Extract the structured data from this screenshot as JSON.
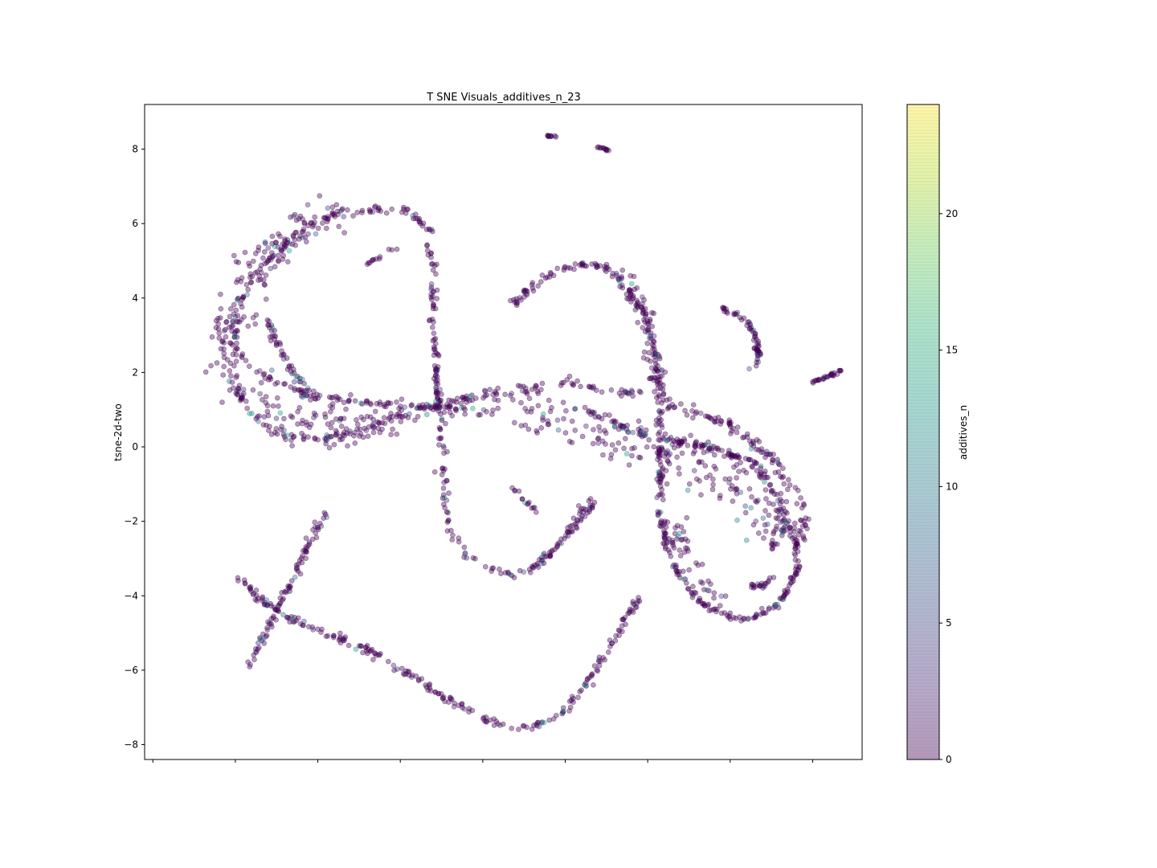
{
  "chart_data": {
    "type": "scatter",
    "title": "T SNE Visuals_additives_n_23",
    "xlabel": "",
    "ylabel": "tsne-2d-two",
    "xlim": [
      -9.2,
      8.2
    ],
    "ylim": [
      -8.4,
      9.2
    ],
    "xticks": [
      -9,
      -7,
      -5,
      -3,
      -1,
      1,
      3,
      5,
      7
    ],
    "yticks": [
      -8,
      -6,
      -4,
      -2,
      0,
      2,
      4,
      6,
      8
    ],
    "ytick_labels": [
      "−8",
      "−6",
      "−4",
      "−2",
      "0",
      "2",
      "4",
      "6",
      "8"
    ],
    "grid": false,
    "marker_alpha": 0.4,
    "colorbar": {
      "label": "additives_n",
      "range": [
        0,
        24
      ],
      "ticks": [
        0,
        5,
        10,
        15,
        20
      ],
      "tick_labels": [
        "0",
        "5",
        "10",
        "15",
        "20"
      ],
      "colormap": "viridis"
    },
    "colormap_stops": [
      "#440154",
      "#482878",
      "#3e4989",
      "#31688e",
      "#26828e",
      "#1f9e89",
      "#35b779",
      "#6ece58",
      "#b5de2b",
      "#fde725"
    ],
    "point_color_main": "#440154",
    "segments": [
      {
        "points": [
          [
            -5.0,
            1.3
          ],
          [
            -6.2,
            1.8
          ],
          [
            -7.0,
            2.6
          ],
          [
            -7.0,
            3.6
          ],
          [
            -6.5,
            4.6
          ],
          [
            -5.7,
            5.6
          ],
          [
            -4.7,
            6.2
          ],
          [
            -3.6,
            6.4
          ],
          [
            -2.7,
            6.3
          ],
          [
            -2.3,
            5.8
          ],
          [
            -2.2,
            4.8
          ],
          [
            -2.2,
            3.5
          ],
          [
            -2.1,
            1.8
          ],
          [
            -2.0,
            0.5
          ],
          [
            -1.95,
            -1.0
          ],
          [
            -1.8,
            -2.3
          ],
          [
            -1.4,
            -2.9
          ],
          [
            -0.8,
            -3.3
          ],
          [
            -0.3,
            -3.4
          ],
          [
            0.2,
            -3.3
          ],
          [
            0.6,
            -2.9
          ],
          [
            1.0,
            -2.4
          ],
          [
            1.3,
            -1.9
          ],
          [
            1.6,
            -1.4
          ]
        ],
        "n": 320,
        "jitter": 0.05
      },
      {
        "points": [
          [
            -5.0,
            1.3
          ],
          [
            -4.3,
            1.25
          ],
          [
            -3.4,
            1.15
          ],
          [
            -2.5,
            1.05
          ],
          [
            -1.4,
            0.98
          ],
          [
            -0.6,
            0.95
          ]
        ],
        "n": 70,
        "jitter": 0.06
      },
      {
        "points": [
          [
            -6.2,
            3.4
          ],
          [
            -6.0,
            2.8
          ],
          [
            -5.6,
            2.0
          ],
          [
            -5.0,
            1.3
          ]
        ],
        "n": 50,
        "jitter": 0.05
      },
      {
        "points": [
          [
            -7.2,
            2.0
          ],
          [
            -7.2,
            3.0
          ],
          [
            -6.9,
            4.0
          ],
          [
            -6.3,
            5.1
          ],
          [
            -5.4,
            5.9
          ],
          [
            -4.4,
            6.3
          ]
        ],
        "n": 160,
        "jitter": 0.25
      },
      {
        "points": [
          [
            -7.1,
            2.0
          ],
          [
            -6.7,
            1.0
          ],
          [
            -6.0,
            0.4
          ],
          [
            -5.0,
            0.2
          ],
          [
            -4.0,
            0.4
          ],
          [
            -3.0,
            0.8
          ],
          [
            -2.1,
            1.1
          ],
          [
            -1.0,
            1.4
          ],
          [
            0.0,
            1.55
          ],
          [
            1.0,
            1.7
          ],
          [
            2.0,
            1.55
          ],
          [
            3.0,
            1.4
          ],
          [
            4.0,
            1.0
          ],
          [
            5.0,
            0.6
          ],
          [
            6.0,
            -0.3
          ],
          [
            6.6,
            -1.2
          ],
          [
            6.8,
            -2.0
          ],
          [
            6.7,
            -2.6
          ]
        ],
        "n": 300,
        "jitter": 0.07
      },
      {
        "points": [
          [
            -6.8,
            1.5
          ],
          [
            -6.0,
            0.8
          ],
          [
            -5.0,
            0.6
          ],
          [
            -4.0,
            0.6
          ],
          [
            -3.0,
            0.8
          ]
        ],
        "n": 90,
        "jitter": 0.3
      },
      {
        "points": [
          [
            -0.2,
            1.0
          ],
          [
            0.5,
            0.8
          ],
          [
            1.5,
            0.5
          ],
          [
            2.5,
            0.1
          ],
          [
            3.5,
            -0.2
          ],
          [
            4.5,
            -0.6
          ],
          [
            5.5,
            -1.2
          ],
          [
            6.0,
            -1.8
          ],
          [
            6.3,
            -2.3
          ]
        ],
        "n": 200,
        "jitter": 0.35
      },
      {
        "points": [
          [
            1.5,
            1.0
          ],
          [
            2.5,
            0.5
          ],
          [
            3.5,
            0.2
          ],
          [
            4.5,
            0.0
          ],
          [
            5.5,
            -0.4
          ],
          [
            6.2,
            -1.4
          ],
          [
            6.3,
            -2.3
          ],
          [
            6.0,
            -2.7
          ]
        ],
        "n": 150,
        "jitter": 0.05
      },
      {
        "points": [
          [
            -0.3,
            3.8
          ],
          [
            0.3,
            4.4
          ],
          [
            1.1,
            4.9
          ],
          [
            1.8,
            4.9
          ],
          [
            2.4,
            4.5
          ],
          [
            2.9,
            3.6
          ],
          [
            3.2,
            2.5
          ],
          [
            3.3,
            1.2
          ],
          [
            3.3,
            -0.5
          ],
          [
            3.3,
            -1.9
          ],
          [
            3.6,
            -3.1
          ],
          [
            4.2,
            -4.1
          ],
          [
            5.0,
            -4.6
          ],
          [
            5.6,
            -4.6
          ],
          [
            6.2,
            -4.2
          ],
          [
            6.6,
            -3.4
          ],
          [
            6.6,
            -2.6
          ],
          [
            6.4,
            -2.0
          ]
        ],
        "n": 360,
        "jitter": 0.05
      },
      {
        "points": [
          [
            2.3,
            4.6
          ],
          [
            2.8,
            3.8
          ],
          [
            3.1,
            2.8
          ],
          [
            3.2,
            1.5
          ]
        ],
        "n": 60,
        "jitter": 0.12
      },
      {
        "points": [
          [
            3.6,
            -1.7
          ],
          [
            3.8,
            -2.6
          ],
          [
            4.2,
            -3.4
          ],
          [
            4.8,
            -4.1
          ]
        ],
        "n": 40,
        "jitter": 0.12
      },
      {
        "points": [
          [
            -4.8,
            -1.7
          ],
          [
            -5.2,
            -2.5
          ],
          [
            -5.6,
            -3.6
          ],
          [
            -6.0,
            -4.4
          ],
          [
            -6.4,
            -5.3
          ],
          [
            -6.7,
            -6.0
          ]
        ],
        "n": 90,
        "jitter": 0.04
      },
      {
        "points": [
          [
            -6.9,
            -3.6
          ],
          [
            -6.3,
            -4.2
          ],
          [
            -5.5,
            -4.7
          ],
          [
            -4.6,
            -5.1
          ],
          [
            -3.7,
            -5.5
          ],
          [
            -2.8,
            -6.1
          ],
          [
            -2.0,
            -6.7
          ],
          [
            -1.2,
            -7.2
          ],
          [
            -0.4,
            -7.5
          ],
          [
            0.3,
            -7.5
          ],
          [
            0.9,
            -7.2
          ],
          [
            1.5,
            -6.4
          ],
          [
            2.0,
            -5.5
          ],
          [
            2.5,
            -4.6
          ],
          [
            2.8,
            -4.0
          ]
        ],
        "n": 240,
        "jitter": 0.05
      },
      {
        "points": [
          [
            1.8,
            -1.4
          ],
          [
            1.3,
            -2.0
          ],
          [
            0.8,
            -2.7
          ],
          [
            0.4,
            -3.1
          ]
        ],
        "n": 40,
        "jitter": 0.04
      },
      {
        "points": [
          [
            4.8,
            3.7
          ],
          [
            5.3,
            3.5
          ],
          [
            5.6,
            3.0
          ],
          [
            5.7,
            2.5
          ],
          [
            5.6,
            2.1
          ]
        ],
        "n": 60,
        "jitter": 0.04
      },
      {
        "points": [
          [
            7.0,
            1.75
          ],
          [
            7.3,
            1.85
          ],
          [
            7.7,
            2.05
          ]
        ],
        "n": 30,
        "jitter": 0.02
      },
      {
        "points": [
          [
            0.55,
            8.35
          ],
          [
            0.75,
            8.35
          ]
        ],
        "n": 10,
        "jitter": 0.02
      },
      {
        "points": [
          [
            1.8,
            8.05
          ],
          [
            2.1,
            7.95
          ]
        ],
        "n": 12,
        "jitter": 0.02
      },
      {
        "points": [
          [
            -0.3,
            -1.05
          ],
          [
            0.0,
            -1.4
          ],
          [
            0.3,
            -1.75
          ]
        ],
        "n": 14,
        "jitter": 0.04
      },
      {
        "points": [
          [
            5.3,
            -3.8
          ],
          [
            5.8,
            -3.7
          ],
          [
            6.2,
            -3.4
          ]
        ],
        "n": 20,
        "jitter": 0.04
      },
      {
        "points": [
          [
            -3.8,
            4.9
          ],
          [
            -3.4,
            5.2
          ],
          [
            -3.0,
            5.4
          ]
        ],
        "n": 12,
        "jitter": 0.04
      }
    ],
    "highlight_fraction": 0.06
  }
}
